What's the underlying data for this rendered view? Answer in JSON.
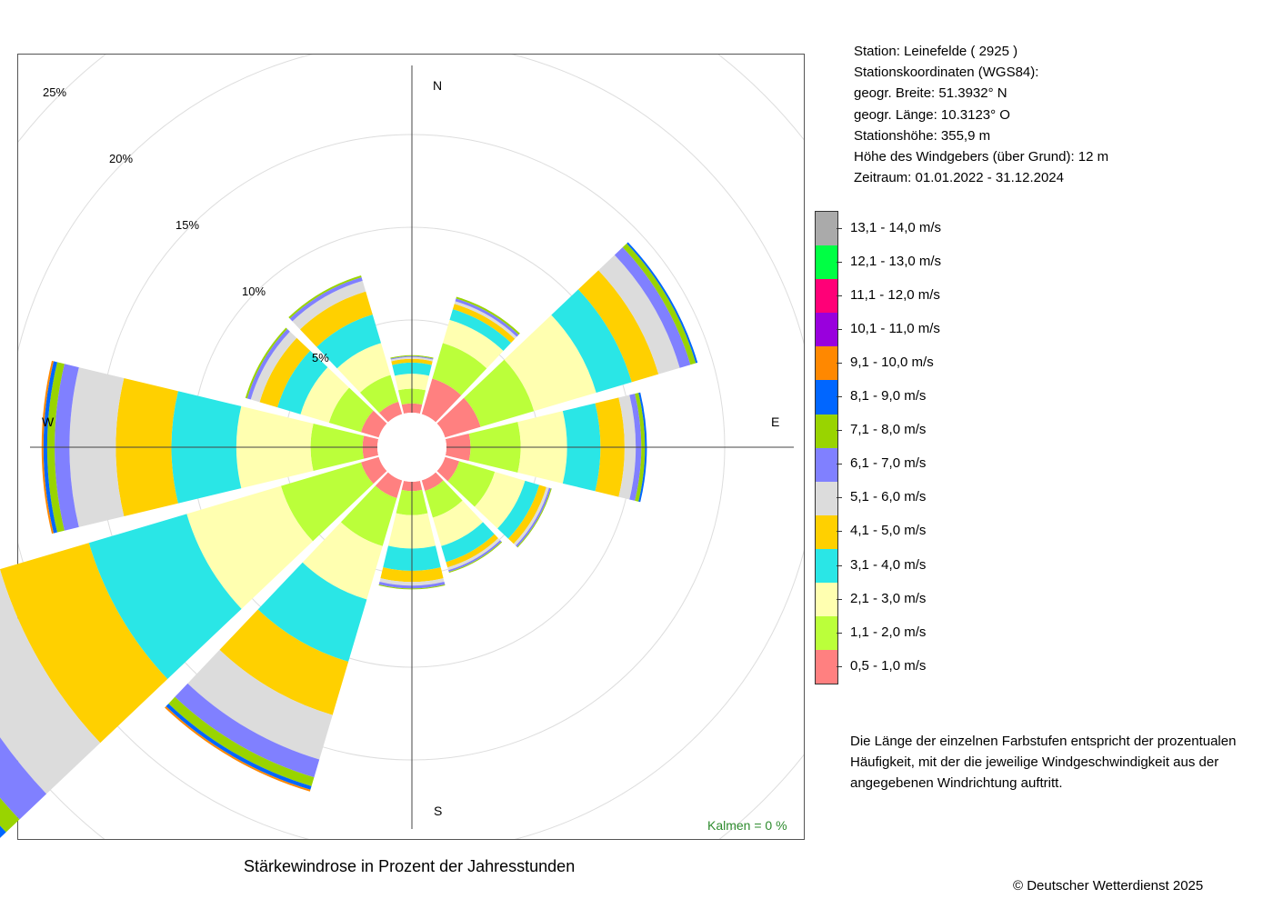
{
  "station": {
    "line1": "Station:  Leinefelde  ( 2925 )",
    "line2": "Stationskoordinaten (WGS84):",
    "line3": "geogr. Breite: 51.3932° N",
    "line4": "geogr. Länge: 10.3123° O",
    "line5": "Stationshöhe: 355,9 m",
    "line6": "Höhe des Windgebers (über Grund): 12 m",
    "line7": "Zeitraum: 01.01.2022 - 31.12.2024"
  },
  "caption": "Stärkewindrose in Prozent der Jahresstunden",
  "copyright": "© Deutscher Wetterdienst  2025",
  "note": "Die Länge der einzelnen Farbstufen entspricht der prozentualen Häufigkeit, mit der die jeweilige Windgeschwindigkeit aus der angegebenen Windrichtung auftritt.",
  "calms": "Kalmen  =  0 %",
  "chart_data": {
    "type": "windrose",
    "title": "Stärkewindrose in Prozent der Jahresstunden",
    "directions_label": {
      "N": "N",
      "E": "E",
      "S": "S",
      "W": "W"
    },
    "ring_labels": [
      "5%",
      "10%",
      "15%",
      "20%",
      "25%"
    ],
    "ring_values": [
      5,
      10,
      15,
      20,
      25
    ],
    "grid": true,
    "legend_placement": "right",
    "speed_classes": [
      {
        "label": "0,5 - 1,0 m/s",
        "color": "#ff8080"
      },
      {
        "label": "1,1 - 2,0 m/s",
        "color": "#bbff3a"
      },
      {
        "label": "2,1 - 3,0 m/s",
        "color": "#ffffb0"
      },
      {
        "label": "3,1 - 4,0 m/s",
        "color": "#2ae6e6"
      },
      {
        "label": "4,1 - 5,0 m/s",
        "color": "#ffd000"
      },
      {
        "label": "5,1 - 6,0 m/s",
        "color": "#dcdcdc"
      },
      {
        "label": "6,1 - 7,0 m/s",
        "color": "#8080ff"
      },
      {
        "label": "7,1 - 8,0 m/s",
        "color": "#99d400"
      },
      {
        "label": "8,1 - 9,0 m/s",
        "color": "#0066ff"
      },
      {
        "label": "9,1 - 10,0 m/s",
        "color": "#ff8800"
      },
      {
        "label": "10,1 - 11,0 m/s",
        "color": "#9900dd"
      },
      {
        "label": "11,1 - 12,0 m/s",
        "color": "#ff0077"
      },
      {
        "label": "12,1 - 13,0 m/s",
        "color": "#00ff44"
      },
      {
        "label": "13,1 - 14,0 m/s",
        "color": "#aaaaaa"
      }
    ],
    "sectors": [
      {
        "dir_deg": 0,
        "values": [
          0.5,
          0.8,
          0.8,
          0.6,
          0.2,
          0.1,
          0.05,
          0.05,
          0,
          0,
          0,
          0,
          0,
          0
        ]
      },
      {
        "dir_deg": 30,
        "values": [
          2.0,
          2.0,
          1.3,
          0.6,
          0.3,
          0.15,
          0.15,
          0.1,
          0,
          0,
          0,
          0,
          0,
          0
        ]
      },
      {
        "dir_deg": 60,
        "values": [
          2.0,
          3.0,
          3.5,
          2.0,
          1.5,
          1.2,
          0.6,
          0.3,
          0.1,
          0,
          0,
          0,
          0,
          0
        ]
      },
      {
        "dir_deg": 90,
        "values": [
          1.3,
          2.7,
          2.5,
          1.8,
          1.3,
          0.6,
          0.3,
          0.2,
          0.1,
          0,
          0,
          0,
          0,
          0
        ]
      },
      {
        "dir_deg": 120,
        "values": [
          0.8,
          2.0,
          1.7,
          0.8,
          0.4,
          0.15,
          0.1,
          0.05,
          0,
          0,
          0,
          0,
          0,
          0
        ]
      },
      {
        "dir_deg": 150,
        "values": [
          0.6,
          1.5,
          1.6,
          0.9,
          0.3,
          0.15,
          0.1,
          0.05,
          0,
          0,
          0,
          0,
          0,
          0
        ]
      },
      {
        "dir_deg": 180,
        "values": [
          0.5,
          1.3,
          1.8,
          1.2,
          0.6,
          0.2,
          0.15,
          0.05,
          0,
          0,
          0,
          0,
          0,
          0
        ]
      },
      {
        "dir_deg": 210,
        "values": [
          1.0,
          2.7,
          3.0,
          3.5,
          3.0,
          2.5,
          1.0,
          0.5,
          0.2,
          0.1,
          0,
          0,
          0,
          0
        ]
      },
      {
        "dir_deg": 240,
        "values": [
          1.0,
          4.5,
          5.3,
          5.5,
          5.0,
          4.0,
          2.0,
          1.0,
          0.5,
          0.3,
          0.1,
          0,
          0,
          0
        ]
      },
      {
        "dir_deg": 270,
        "values": [
          0.8,
          2.8,
          4.0,
          3.5,
          3.0,
          2.5,
          0.8,
          0.4,
          0.2,
          0.1,
          0,
          0,
          0,
          0
        ]
      },
      {
        "dir_deg": 300,
        "values": [
          1.0,
          1.8,
          1.6,
          1.3,
          1.0,
          0.5,
          0.2,
          0.1,
          0,
          0,
          0,
          0,
          0,
          0
        ]
      },
      {
        "dir_deg": 330,
        "values": [
          0.7,
          1.5,
          1.8,
          1.6,
          1.3,
          0.6,
          0.2,
          0.1,
          0,
          0,
          0,
          0,
          0,
          0
        ]
      }
    ]
  }
}
